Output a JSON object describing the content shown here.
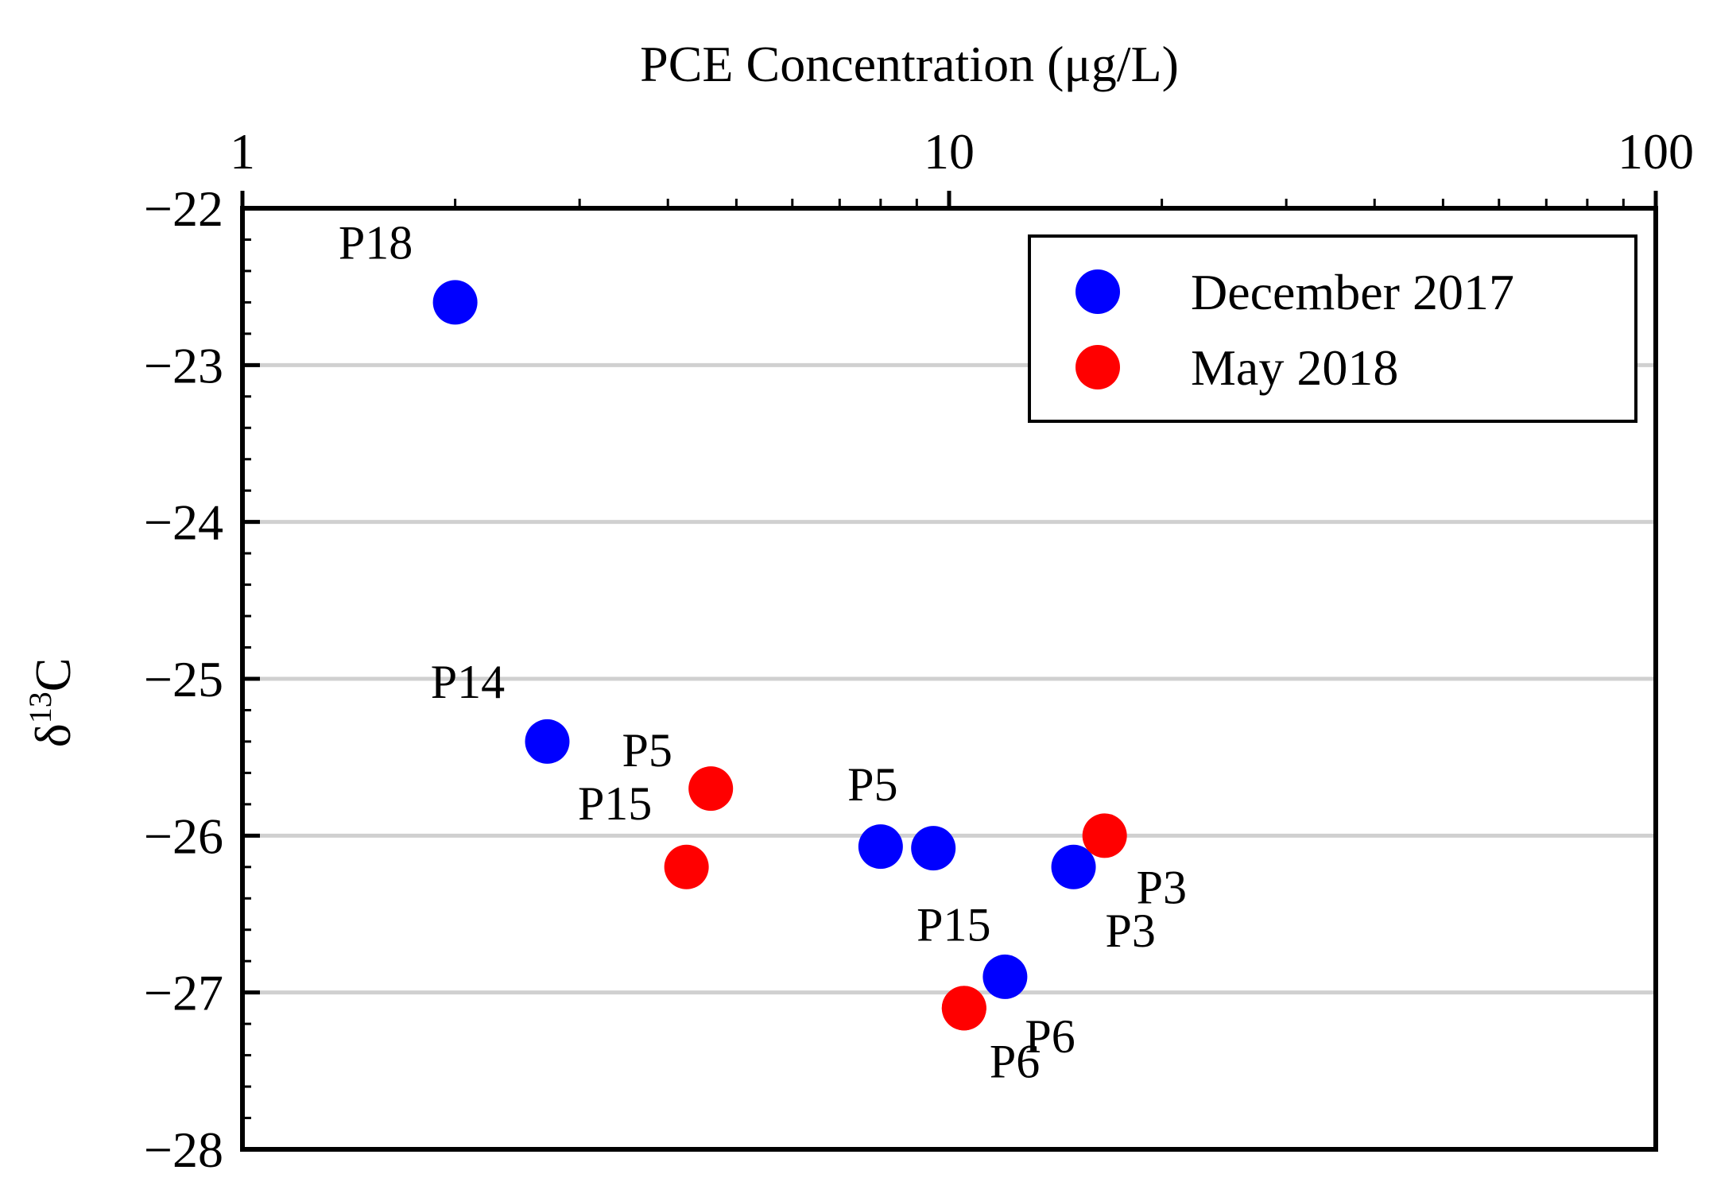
{
  "chart_data": {
    "type": "scatter",
    "title": "",
    "xlabel": "PCE Concentration (μg/L)",
    "ylabel": "δ¹³C",
    "ylabel_base": "δ",
    "ylabel_sup": "13",
    "ylabel_main": "C",
    "xscale": "log",
    "xlim": [
      1,
      100
    ],
    "ylim": [
      -28,
      -22
    ],
    "x_ticks": [
      1,
      10,
      100
    ],
    "x_tick_labels": [
      "1",
      "10",
      "100"
    ],
    "y_ticks": [
      -22,
      -23,
      -24,
      -25,
      -26,
      -27,
      -28
    ],
    "y_tick_labels": [
      "−22",
      "−23",
      "−24",
      "−25",
      "−26",
      "−27",
      "−28"
    ],
    "grid": "horizontal",
    "legend_position": "top-right",
    "series": [
      {
        "name": "December 2017",
        "color": "#0000ff",
        "points": [
          {
            "label": "P18",
            "x": 2.0,
            "y": -22.6
          },
          {
            "label": "P14",
            "x": 2.7,
            "y": -25.4
          },
          {
            "label": "P5",
            "x": 8.0,
            "y": -26.07
          },
          {
            "label": "",
            "x": 9.5,
            "y": -26.08
          },
          {
            "label": "P3",
            "x": 15.0,
            "y": -26.2
          },
          {
            "label": "P6",
            "x": 12.0,
            "y": -26.9
          }
        ]
      },
      {
        "name": "May 2018",
        "color": "#ff0000",
        "points": [
          {
            "label": "P5",
            "x": 4.6,
            "y": -25.7
          },
          {
            "label": "P15",
            "x": 4.25,
            "y": -26.2
          },
          {
            "label": "P3",
            "x": 16.6,
            "y": -26.0
          },
          {
            "label": "P15",
            "x": 10.5,
            "y": -27.1
          },
          {
            "label": "P6",
            "x": 10.5,
            "y": -27.1
          }
        ]
      }
    ]
  }
}
